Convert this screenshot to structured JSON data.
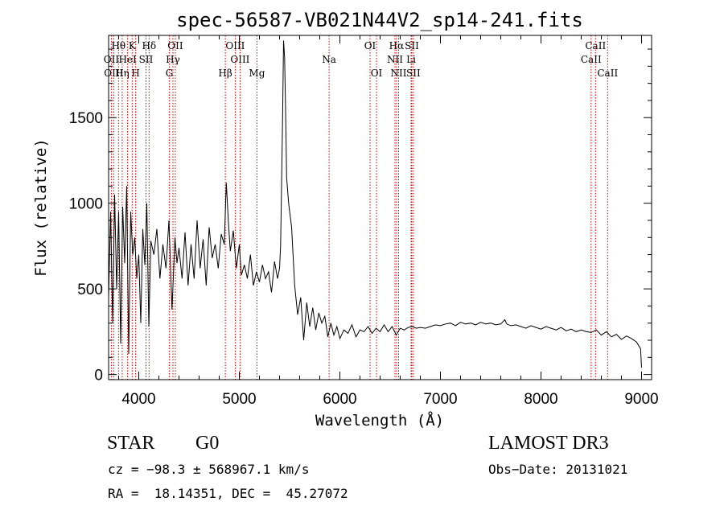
{
  "chart_data": {
    "type": "line",
    "title": "spec-56587-VB021N44V2_sp14-241.fits",
    "xlabel": "Wavelength (Å)",
    "ylabel": "Flux (relative)",
    "xlim": [
      3700,
      9100
    ],
    "ylim": [
      -30,
      1980
    ],
    "xticks": [
      4000,
      5000,
      6000,
      7000,
      8000,
      9000
    ],
    "xtick_labels": [
      "4000",
      "5000",
      "6000",
      "7000",
      "8000",
      "9000"
    ],
    "yticks": [
      0,
      500,
      1000,
      1500
    ],
    "ytick_labels": [
      "0",
      "500",
      "1000",
      "1500"
    ],
    "line_color": "#000000",
    "marker_color": "#cc0000",
    "spectrum": {
      "x": [
        3700,
        3720,
        3740,
        3760,
        3780,
        3800,
        3820,
        3840,
        3860,
        3880,
        3900,
        3920,
        3940,
        3960,
        3980,
        4000,
        4020,
        4040,
        4060,
        4080,
        4100,
        4120,
        4150,
        4180,
        4210,
        4240,
        4270,
        4300,
        4330,
        4360,
        4380,
        4400,
        4430,
        4460,
        4490,
        4520,
        4550,
        4580,
        4610,
        4640,
        4670,
        4700,
        4730,
        4760,
        4790,
        4820,
        4850,
        4870,
        4890,
        4910,
        4940,
        4970,
        5000,
        5020,
        5050,
        5080,
        5110,
        5140,
        5170,
        5200,
        5230,
        5260,
        5290,
        5320,
        5350,
        5380,
        5400,
        5410,
        5420,
        5430,
        5440,
        5450,
        5460,
        5470,
        5490,
        5520,
        5550,
        5580,
        5610,
        5640,
        5670,
        5700,
        5730,
        5760,
        5790,
        5820,
        5850,
        5880,
        5910,
        5940,
        5970,
        6000,
        6040,
        6080,
        6120,
        6160,
        6200,
        6240,
        6280,
        6320,
        6360,
        6400,
        6440,
        6480,
        6520,
        6560,
        6600,
        6640,
        6680,
        6720,
        6760,
        6800,
        6850,
        6900,
        6950,
        7000,
        7050,
        7100,
        7150,
        7200,
        7250,
        7300,
        7350,
        7400,
        7450,
        7500,
        7550,
        7600,
        7640,
        7660,
        7700,
        7750,
        7800,
        7850,
        7900,
        7950,
        8000,
        8050,
        8100,
        8150,
        8200,
        8250,
        8300,
        8350,
        8400,
        8450,
        8500,
        8550,
        8600,
        8650,
        8700,
        8750,
        8800,
        8850,
        8900,
        8950,
        8990,
        9000
      ],
      "y": [
        450,
        950,
        300,
        1050,
        500,
        950,
        180,
        980,
        650,
        1100,
        120,
        950,
        700,
        800,
        560,
        700,
        300,
        850,
        640,
        1000,
        280,
        780,
        700,
        850,
        560,
        760,
        620,
        900,
        380,
        800,
        650,
        740,
        560,
        830,
        520,
        760,
        560,
        900,
        620,
        790,
        520,
        860,
        680,
        760,
        620,
        820,
        760,
        1120,
        900,
        720,
        840,
        620,
        760,
        580,
        640,
        560,
        700,
        520,
        600,
        540,
        640,
        560,
        600,
        480,
        660,
        560,
        620,
        750,
        1100,
        1500,
        1950,
        1850,
        1550,
        1150,
        1000,
        860,
        520,
        350,
        450,
        200,
        420,
        280,
        390,
        260,
        360,
        300,
        340,
        220,
        300,
        230,
        280,
        210,
        260,
        240,
        290,
        220,
        260,
        250,
        280,
        240,
        270,
        250,
        290,
        250,
        280,
        230,
        270,
        260,
        275,
        280,
        270,
        275,
        270,
        280,
        290,
        285,
        295,
        300,
        285,
        305,
        295,
        300,
        290,
        305,
        295,
        300,
        290,
        295,
        320,
        295,
        285,
        290,
        280,
        270,
        285,
        275,
        265,
        280,
        270,
        260,
        275,
        255,
        265,
        250,
        260,
        250,
        245,
        260,
        230,
        250,
        220,
        235,
        205,
        225,
        210,
        190,
        150,
        40
      ]
    },
    "annotations": [
      {
        "label": "Hθ",
        "wavelength": 3798,
        "row": 1
      },
      {
        "label": "K",
        "wavelength": 3934,
        "row": 1
      },
      {
        "label": "Hδ",
        "wavelength": 4102,
        "row": 1
      },
      {
        "label": "OII",
        "wavelength": 4363,
        "row": 1
      },
      {
        "label": "OIII",
        "wavelength": 4959,
        "row": 1
      },
      {
        "label": "OI",
        "wavelength": 6300,
        "row": 1
      },
      {
        "label": "Hα",
        "wavelength": 6563,
        "row": 1
      },
      {
        "label": "SII",
        "wavelength": 6716,
        "row": 1
      },
      {
        "label": "CaII",
        "wavelength": 8542,
        "row": 1
      },
      {
        "label": "OII",
        "wavelength": 3727,
        "row": 2
      },
      {
        "label": "HeI",
        "wavelength": 3889,
        "row": 2
      },
      {
        "label": "SII",
        "wavelength": 4072,
        "row": 2
      },
      {
        "label": "Hγ",
        "wavelength": 4340,
        "row": 2
      },
      {
        "label": "OIII",
        "wavelength": 5007,
        "row": 2
      },
      {
        "label": "Na",
        "wavelength": 5893,
        "row": 2
      },
      {
        "label": "NII",
        "wavelength": 6548,
        "row": 2
      },
      {
        "label": "Li",
        "wavelength": 6708,
        "row": 2
      },
      {
        "label": "CaII",
        "wavelength": 8498,
        "row": 2
      },
      {
        "label": "OIII",
        "wavelength": 3750,
        "row": 3
      },
      {
        "label": "Hη",
        "wavelength": 3835,
        "row": 3
      },
      {
        "label": "H",
        "wavelength": 3969,
        "row": 3
      },
      {
        "label": "G",
        "wavelength": 4305,
        "row": 3
      },
      {
        "label": "Hβ",
        "wavelength": 4861,
        "row": 3
      },
      {
        "label": "Mg",
        "wavelength": 5175,
        "row": 3
      },
      {
        "label": "OI",
        "wavelength": 6364,
        "row": 3
      },
      {
        "label": "NII",
        "wavelength": 6584,
        "row": 3
      },
      {
        "label": "SII",
        "wavelength": 6731,
        "row": 3
      },
      {
        "label": "CaII",
        "wavelength": 8662,
        "row": 3
      }
    ]
  },
  "info": {
    "class": "STAR",
    "subclass": "G0",
    "survey": "LAMOST DR3",
    "cz": "cz = −98.3 ± 568967.1 km/s",
    "obs_date": "Obs−Date: 20131021",
    "coords": "RA =  18.14351, DEC =  45.27072"
  }
}
